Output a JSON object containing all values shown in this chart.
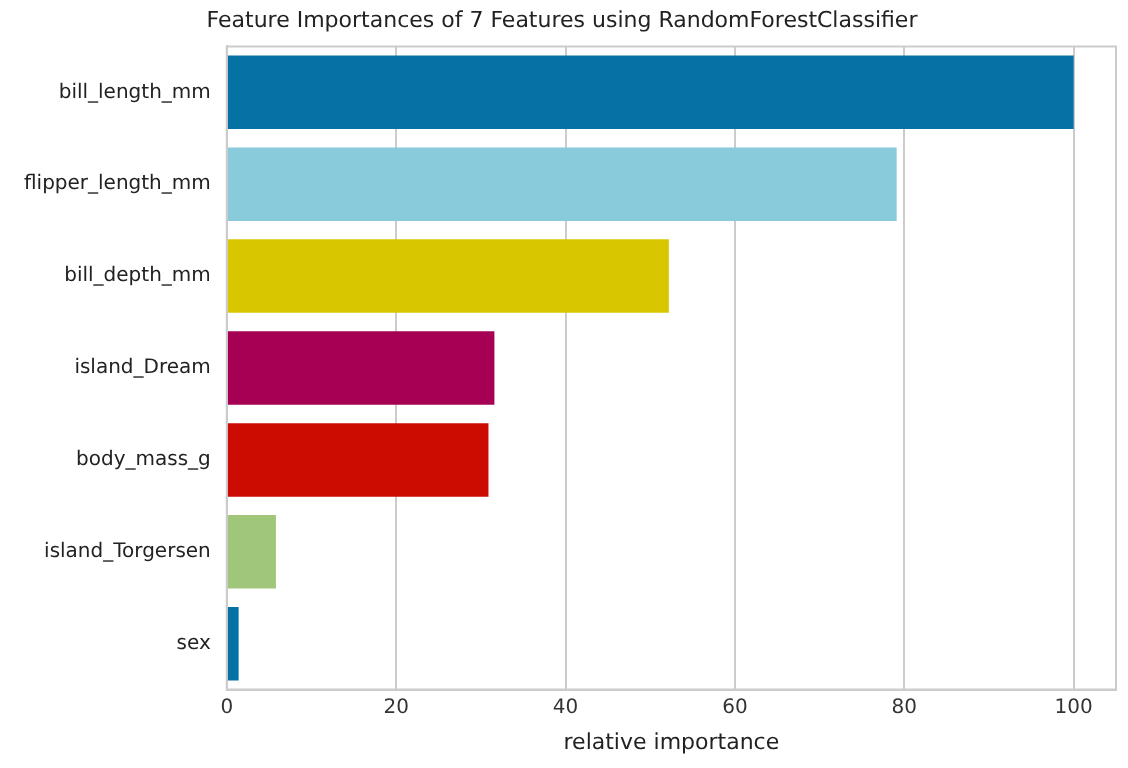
{
  "chart_data": {
    "type": "bar",
    "orientation": "horizontal",
    "title": "Feature Importances of 7 Features using RandomForestClassifier",
    "xlabel": "relative importance",
    "categories": [
      "bill_length_mm",
      "flipper_length_mm",
      "bill_depth_mm",
      "island_Dream",
      "body_mass_g",
      "island_Torgersen",
      "sex"
    ],
    "values": [
      100,
      79.1,
      52.2,
      31.6,
      30.9,
      5.8,
      1.4
    ],
    "colors": [
      "#0472a5",
      "#89cadb",
      "#d8c700",
      "#a50054",
      "#cc0c00",
      "#a0c67a",
      "#0472a5"
    ],
    "xlim": [
      0,
      105
    ],
    "xticks": [
      0,
      20,
      40,
      60,
      80,
      100
    ],
    "grid": "x",
    "legend": false
  }
}
